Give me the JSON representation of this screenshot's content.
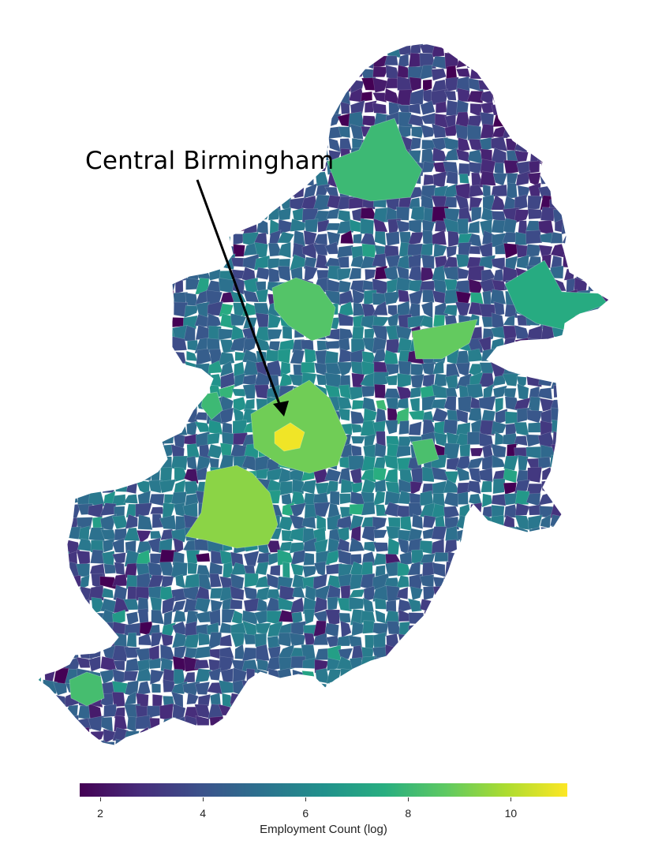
{
  "annotation": {
    "text": "Central Birmingham"
  },
  "colorbar": {
    "label": "Employment Count (log)",
    "min": 1.6,
    "max": 11.1,
    "ticks": [
      "2",
      "4",
      "6",
      "8",
      "10"
    ],
    "stops": [
      "#440154",
      "#472d7b",
      "#3b528b",
      "#2c728e",
      "#21918c",
      "#28ae80",
      "#5ec962",
      "#addc30",
      "#fde725"
    ]
  },
  "map_data": {
    "region": "Birmingham",
    "min_value": 1.6,
    "max_value": 11.1,
    "peak_area": "Central Birmingham",
    "peak_value": 11
  }
}
